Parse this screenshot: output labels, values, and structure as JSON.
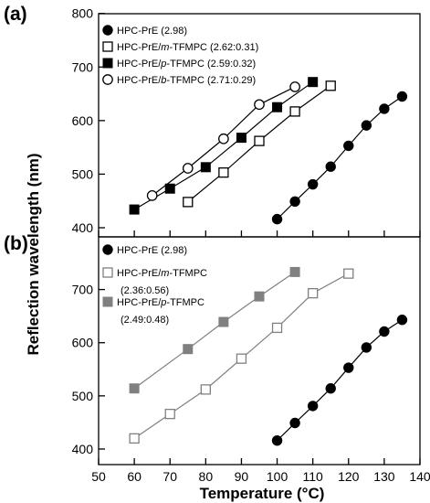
{
  "figure": {
    "xlabel": "Temperature (°C)",
    "ylabel": "Reflection wavelength (nm)"
  },
  "chart_data": [
    {
      "panel": "(a)",
      "type": "line",
      "xlabel": "Temperature (°C)",
      "ylabel": "Reflection wavelength (nm)",
      "xlim": [
        50,
        140
      ],
      "ylim": [
        380,
        800
      ],
      "yticks": [
        400,
        500,
        600,
        700,
        800
      ],
      "legend_position": "top-left",
      "series": [
        {
          "name": "HPC-PrE (2.98)",
          "marker": "filled-circle",
          "color": "#000000",
          "x": [
            100,
            105,
            110,
            115,
            120,
            125,
            130,
            135
          ],
          "y": [
            416,
            449,
            481,
            514,
            553,
            591,
            622,
            645
          ]
        },
        {
          "name": "HPC-PrE/m-TFMPC (2.62:0.31)",
          "marker": "open-square",
          "color": "#000000",
          "x": [
            75,
            85,
            95,
            105,
            115
          ],
          "y": [
            448,
            503,
            562,
            617,
            665
          ]
        },
        {
          "name": "HPC-PrE/p-TFMPC (2.59:0.32)",
          "marker": "filled-square",
          "color": "#000000",
          "x": [
            60,
            70,
            80,
            90,
            100,
            110
          ],
          "y": [
            434,
            473,
            513,
            568,
            625,
            672
          ]
        },
        {
          "name": "HPC-PrE/b-TFMPC (2.71:0.29)",
          "marker": "open-circle",
          "color": "#000000",
          "x": [
            65,
            75,
            85,
            95,
            105
          ],
          "y": [
            460,
            511,
            566,
            630,
            663
          ]
        }
      ]
    },
    {
      "panel": "(b)",
      "type": "line",
      "xlabel": "Temperature (°C)",
      "ylabel": "Reflection wavelength (nm)",
      "xlim": [
        50,
        140
      ],
      "ylim": [
        380,
        800
      ],
      "yticks": [
        400,
        500,
        600,
        700
      ],
      "xticks": [
        50,
        60,
        70,
        80,
        90,
        100,
        110,
        120,
        130,
        140
      ],
      "legend_position": "top-left",
      "series": [
        {
          "name": "HPC-PrE (2.98)",
          "marker": "filled-circle",
          "color": "#000000",
          "x": [
            100,
            105,
            110,
            115,
            120,
            125,
            130,
            135
          ],
          "y": [
            416,
            449,
            481,
            514,
            553,
            591,
            621,
            643
          ]
        },
        {
          "name": "HPC-PrE/m-TFMPC (2.36:0.56)",
          "marker": "open-square",
          "color": "#808080",
          "x": [
            60,
            70,
            80,
            90,
            100,
            110,
            120
          ],
          "y": [
            420,
            466,
            512,
            570,
            628,
            693,
            730
          ]
        },
        {
          "name": "HPC-PrE/p-TFMPC (2.49:0.48)",
          "marker": "filled-square",
          "color": "#808080",
          "x": [
            60,
            75,
            85,
            95,
            105
          ],
          "y": [
            514,
            588,
            639,
            687,
            733
          ]
        }
      ]
    }
  ]
}
